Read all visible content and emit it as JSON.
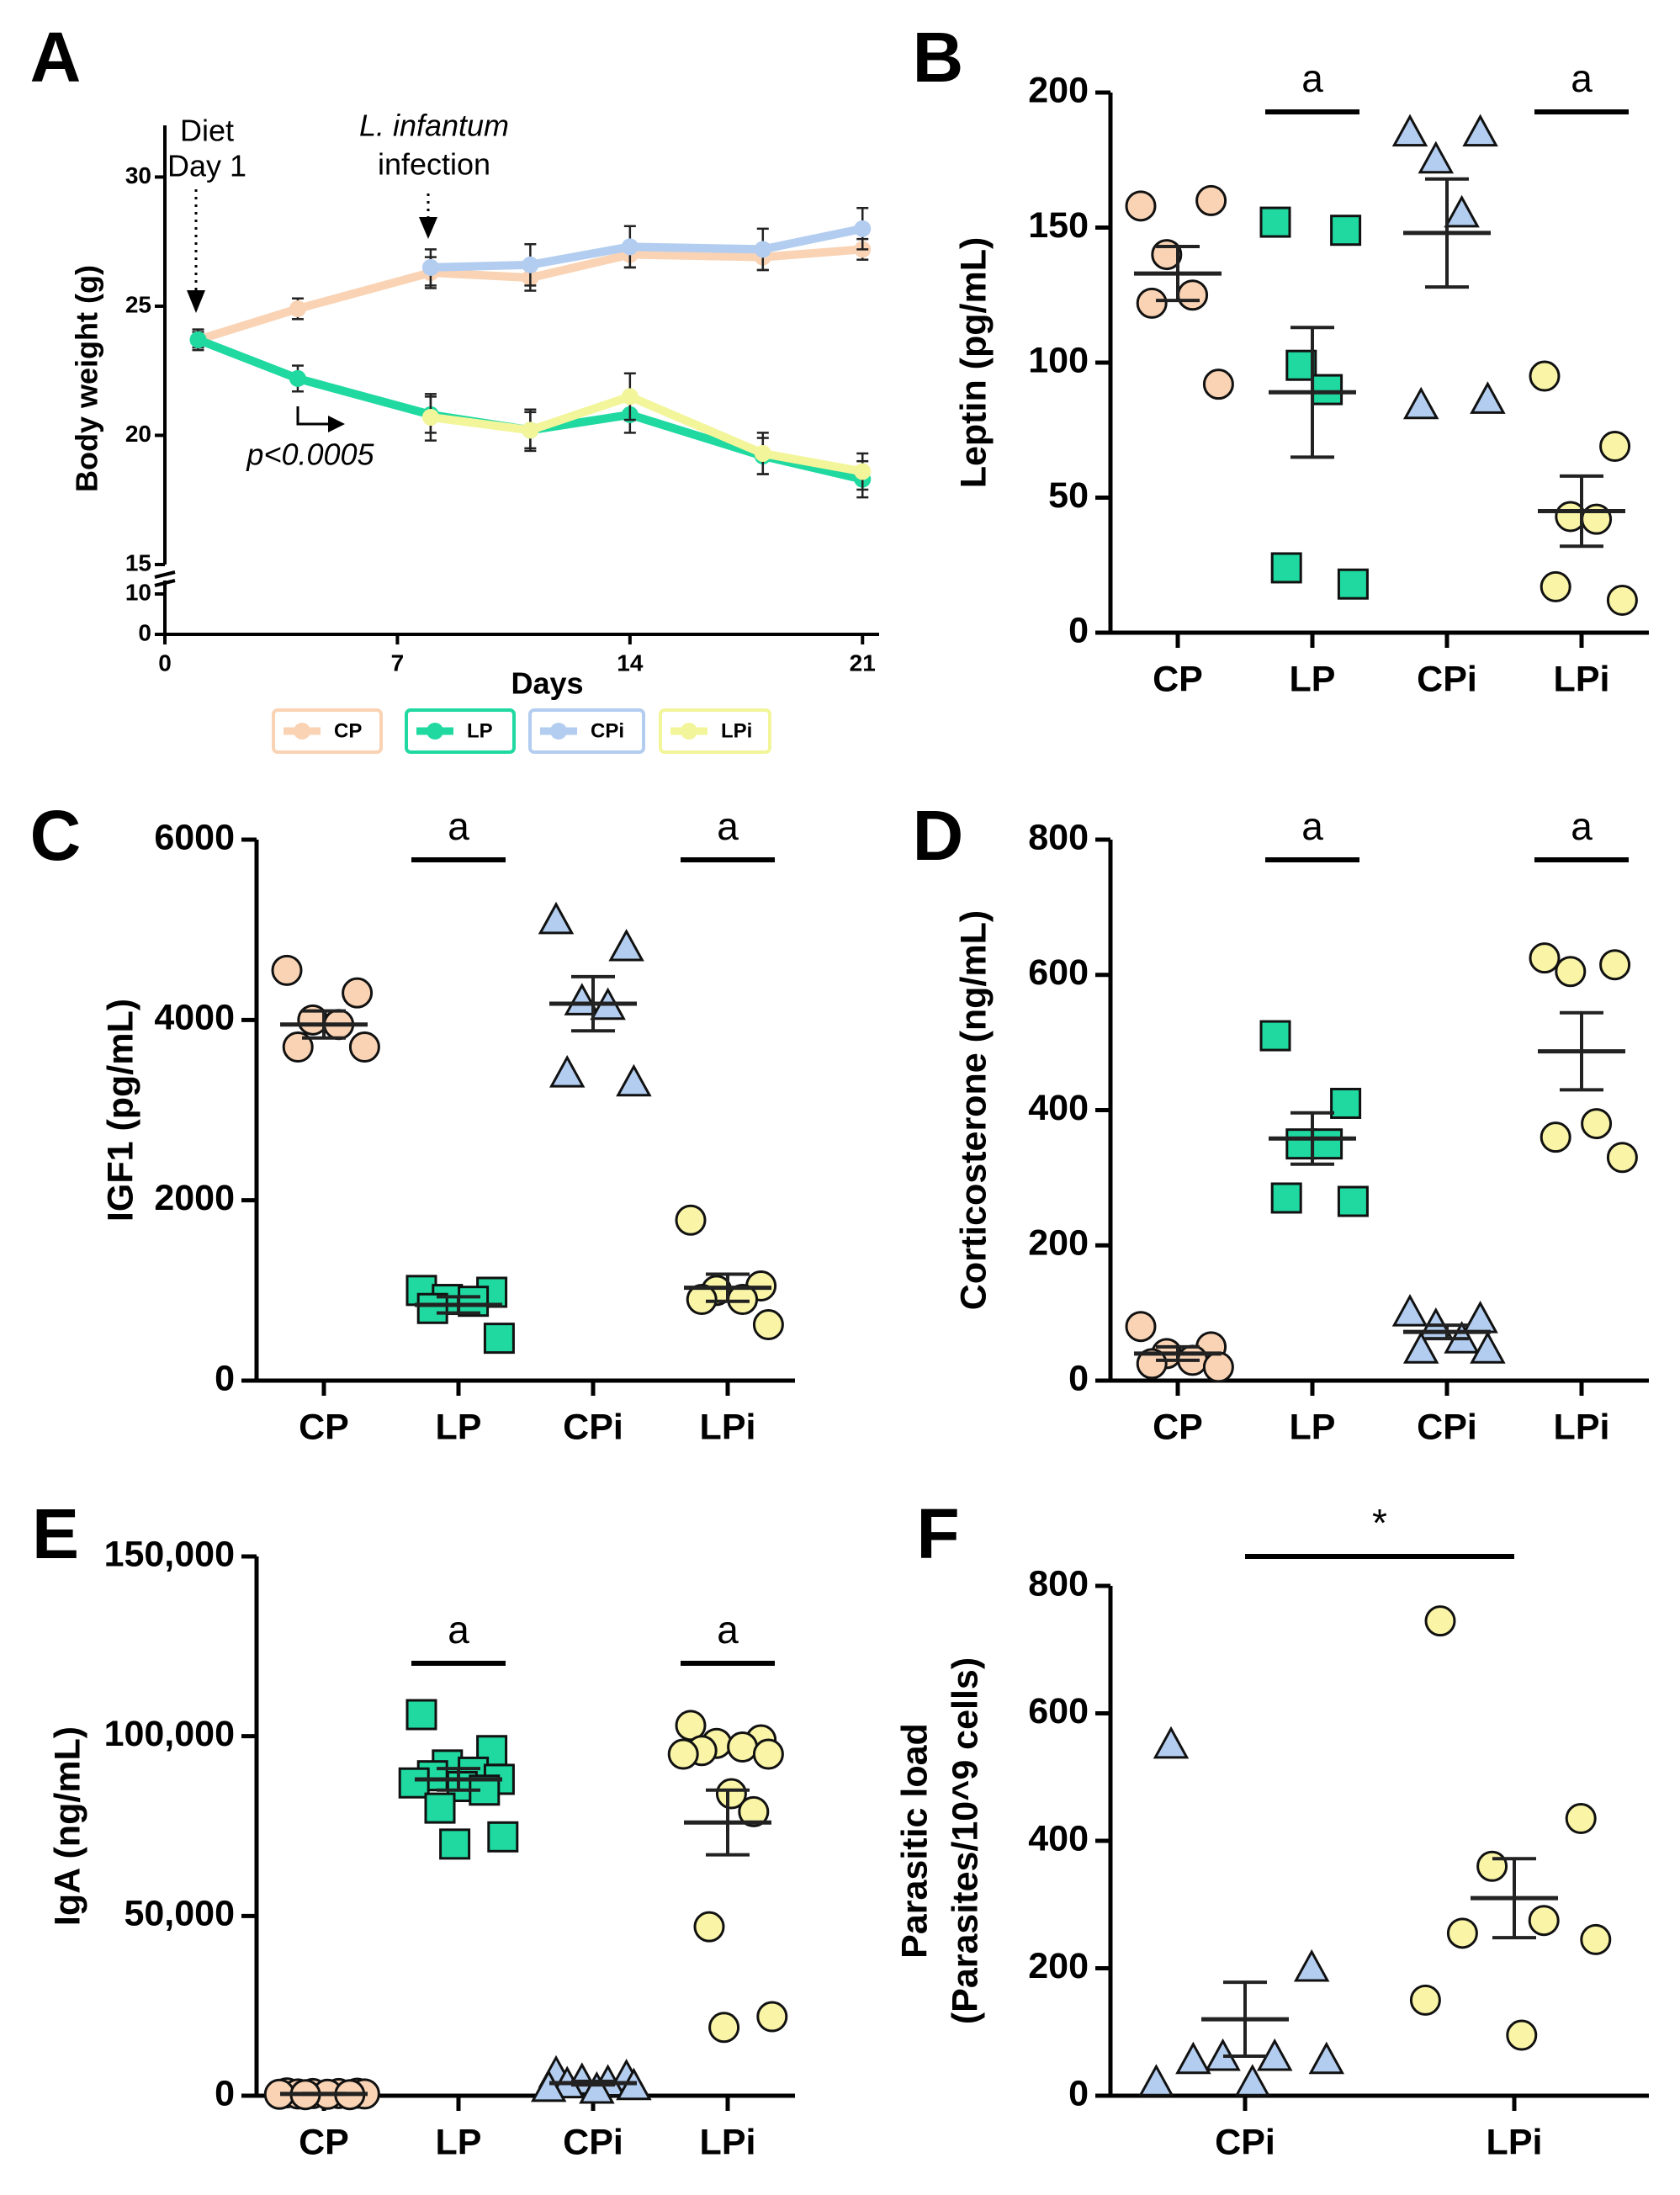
{
  "chart_data": [
    {
      "type": "line",
      "panel_label": "A",
      "xlabel": "Days",
      "ylabel": "Body weight (g)",
      "x": [
        1,
        4,
        8,
        11,
        14,
        18,
        21
      ],
      "xlim": [
        0,
        21.5
      ],
      "xticks": [
        0,
        7,
        14,
        21
      ],
      "ylim": [
        15,
        32
      ],
      "yticks": [
        15,
        20,
        25,
        30
      ],
      "y_lower_lim": [
        0,
        10
      ],
      "y_lower_ticks": [
        0,
        10
      ],
      "annotations": [
        "Diet",
        "Day 1",
        "L. infantum",
        "infection",
        "p<0.0005"
      ],
      "series": [
        {
          "name": "CP",
          "color": "#f9d3b4",
          "values": [
            23.7,
            24.9,
            26.3,
            26.1,
            27.0,
            26.9,
            27.2
          ],
          "errors": [
            0.3,
            0.4,
            0.6,
            0.5,
            0.5,
            0.5,
            0.4
          ]
        },
        {
          "name": "LP",
          "color": "#1fd9a0",
          "values": [
            23.7,
            22.2,
            20.8,
            20.2,
            20.8,
            19.2,
            18.3
          ],
          "errors": [
            0.4,
            0.5,
            0.7,
            0.8,
            0.7,
            0.7,
            0.7
          ]
        },
        {
          "name": "CPi",
          "color": "#b3cdf0",
          "values": [
            null,
            null,
            26.5,
            26.6,
            27.3,
            27.2,
            28.0
          ],
          "errors": [
            null,
            null,
            0.7,
            0.8,
            0.8,
            0.8,
            0.8
          ]
        },
        {
          "name": "LPi",
          "color": "#f3f59a",
          "values": [
            null,
            null,
            20.7,
            20.2,
            21.5,
            19.3,
            18.6
          ],
          "errors": [
            null,
            null,
            0.9,
            0.7,
            0.9,
            0.8,
            0.7
          ]
        }
      ]
    },
    {
      "type": "dot",
      "panel_label": "B",
      "ylabel": "Leptin (pg/mL)",
      "categories": [
        "CP",
        "LP",
        "CPi",
        "LPi"
      ],
      "ylim": [
        0,
        200
      ],
      "yticks": [
        0,
        50,
        100,
        150,
        200
      ],
      "significance": [
        {
          "label": "a",
          "categories": [
            1
          ]
        },
        {
          "label": "a",
          "categories": [
            3
          ]
        }
      ],
      "series": [
        {
          "color": "#f9d3b4",
          "marker": "circle",
          "points": [
            158,
            160,
            140,
            125,
            122,
            92
          ],
          "mean": 133,
          "sem": 10
        },
        {
          "color": "#1fd9a0",
          "marker": "square",
          "points": [
            152,
            149,
            99,
            90,
            24,
            18
          ],
          "mean": 89,
          "sem": 24
        },
        {
          "color": "#b3cdf0",
          "marker": "triangle",
          "points": [
            185,
            185,
            175,
            155,
            84,
            86
          ],
          "mean": 148,
          "sem": 20
        },
        {
          "color": "#f9f4a6",
          "marker": "circle",
          "points": [
            95,
            69,
            43,
            42,
            17,
            12
          ],
          "mean": 45,
          "sem": 13
        }
      ]
    },
    {
      "type": "dot",
      "panel_label": "C",
      "ylabel": "IGF1 (pg/mL)",
      "categories": [
        "CP",
        "LP",
        "CPi",
        "LPi"
      ],
      "ylim": [
        0,
        6000
      ],
      "yticks": [
        0,
        2000,
        4000,
        6000
      ],
      "significance": [
        {
          "label": "a",
          "categories": [
            1
          ]
        },
        {
          "label": "a",
          "categories": [
            3
          ]
        }
      ],
      "series": [
        {
          "color": "#f9d3b4",
          "marker": "circle",
          "points": [
            4550,
            4300,
            4000,
            3950,
            3700,
            3700
          ],
          "mean": 3950,
          "sem": 150
        },
        {
          "color": "#1fd9a0",
          "marker": "square",
          "points": [
            1000,
            980,
            900,
            880,
            800,
            470
          ],
          "mean": 840,
          "sem": 90
        },
        {
          "color": "#b3cdf0",
          "marker": "triangle",
          "points": [
            5100,
            4800,
            4200,
            4150,
            3400,
            3300
          ],
          "mean": 4180,
          "sem": 300
        },
        {
          "color": "#f9f4a6",
          "marker": "circle",
          "points": [
            1780,
            1050,
            1000,
            900,
            900,
            620
          ],
          "mean": 1030,
          "sem": 150
        }
      ]
    },
    {
      "type": "dot",
      "panel_label": "D",
      "ylabel": "Corticosterone (ng/mL)",
      "categories": [
        "CP",
        "LP",
        "CPi",
        "LPi"
      ],
      "ylim": [
        0,
        800
      ],
      "yticks": [
        0,
        200,
        400,
        600,
        800
      ],
      "significance": [
        {
          "label": "a",
          "categories": [
            1
          ]
        },
        {
          "label": "a",
          "categories": [
            3
          ]
        }
      ],
      "series": [
        {
          "color": "#f9d3b4",
          "marker": "circle",
          "points": [
            80,
            50,
            40,
            30,
            25,
            20
          ],
          "mean": 40,
          "sem": 10
        },
        {
          "color": "#1fd9a0",
          "marker": "square",
          "points": [
            510,
            410,
            350,
            350,
            270,
            265
          ],
          "mean": 358,
          "sem": 38
        },
        {
          "color": "#b3cdf0",
          "marker": "triangle",
          "points": [
            100,
            90,
            80,
            60,
            45,
            45
          ],
          "mean": 72,
          "sem": 10
        },
        {
          "color": "#f9f4a6",
          "marker": "circle",
          "points": [
            625,
            615,
            605,
            380,
            360,
            330
          ],
          "mean": 487,
          "sem": 57
        }
      ]
    },
    {
      "type": "dot",
      "panel_label": "E",
      "ylabel": "IgA (ng/mL)",
      "categories": [
        "CP",
        "LP",
        "CPi",
        "LPi"
      ],
      "ylim": [
        0,
        150000
      ],
      "yticks": [
        0,
        {
          "value": 50000,
          "label": "50,000"
        },
        {
          "value": 100000,
          "label": "100,000"
        },
        {
          "value": 150000,
          "label": "150,000"
        }
      ],
      "significance": [
        {
          "label": "a",
          "categories": [
            1
          ]
        },
        {
          "label": "a",
          "categories": [
            3
          ]
        }
      ],
      "series": [
        {
          "color": "#f9d3b4",
          "marker": "circle",
          "points": [
            800,
            700,
            600,
            600,
            500,
            500,
            400,
            400,
            300,
            300
          ],
          "mean": 500,
          "sem": 100
        },
        {
          "color": "#1fd9a0",
          "marker": "square",
          "points": [
            106000,
            96000,
            92000,
            90000,
            89000,
            88000,
            87000,
            86000,
            85000,
            80000,
            72000,
            70000
          ],
          "mean": 88000,
          "sem": 3000
        },
        {
          "color": "#b3cdf0",
          "marker": "triangle",
          "points": [
            6000,
            5000,
            4000,
            3500,
            3000,
            2500,
            2000,
            1500
          ],
          "mean": 3500,
          "sem": 500
        },
        {
          "color": "#f9f4a6",
          "marker": "circle",
          "points": [
            103000,
            99000,
            98000,
            97000,
            96000,
            95000,
            95000,
            84000,
            79000,
            47000,
            22000,
            19000
          ],
          "mean": 76000,
          "sem": 9000
        }
      ]
    },
    {
      "type": "dot",
      "panel_label": "F",
      "ylabel": [
        "Parasitic load",
        "(Parasites/10^9 cells)"
      ],
      "categories": [
        "CPi",
        "LPi"
      ],
      "ylim": [
        0,
        800
      ],
      "yticks": [
        0,
        200,
        400,
        600,
        800
      ],
      "significance": [
        {
          "label": "*",
          "categories": [
            0,
            1
          ]
        }
      ],
      "series": [
        {
          "color": "#b3cdf0",
          "marker": "triangle",
          "points": [
            550,
            200,
            60,
            60,
            55,
            55,
            20,
            20
          ],
          "mean": 120,
          "sem": 58
        },
        {
          "color": "#f9f4a6",
          "marker": "circle",
          "points": [
            745,
            435,
            360,
            275,
            255,
            245,
            150,
            95
          ],
          "mean": 310,
          "sem": 62
        }
      ]
    }
  ]
}
